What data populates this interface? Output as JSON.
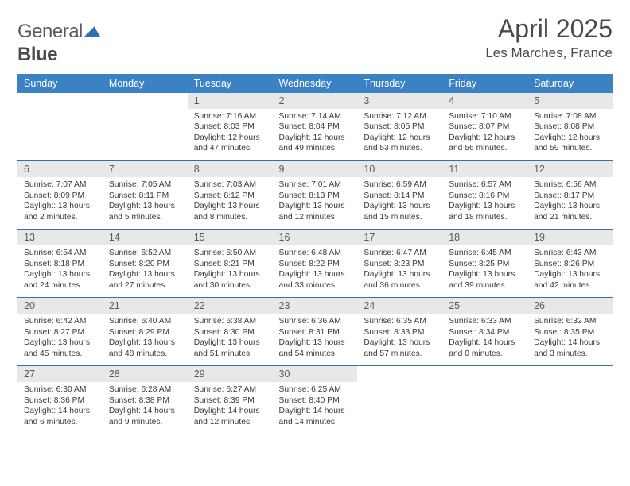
{
  "brand": {
    "part1": "General",
    "part2": "Blue"
  },
  "title": "April 2025",
  "location": "Les Marches, France",
  "colors": {
    "header_bg": "#3b82c4",
    "header_text": "#ffffff",
    "daynum_bg": "#e8e8e8",
    "text": "#4a4a4a",
    "rule": "#3b6fa0",
    "logo_mark": "#2d6fb5"
  },
  "day_headers": [
    "Sunday",
    "Monday",
    "Tuesday",
    "Wednesday",
    "Thursday",
    "Friday",
    "Saturday"
  ],
  "weeks": [
    [
      null,
      null,
      {
        "n": "1",
        "sr": "7:16 AM",
        "ss": "8:03 PM",
        "dl": "12 hours and 47 minutes."
      },
      {
        "n": "2",
        "sr": "7:14 AM",
        "ss": "8:04 PM",
        "dl": "12 hours and 49 minutes."
      },
      {
        "n": "3",
        "sr": "7:12 AM",
        "ss": "8:05 PM",
        "dl": "12 hours and 53 minutes."
      },
      {
        "n": "4",
        "sr": "7:10 AM",
        "ss": "8:07 PM",
        "dl": "12 hours and 56 minutes."
      },
      {
        "n": "5",
        "sr": "7:08 AM",
        "ss": "8:08 PM",
        "dl": "12 hours and 59 minutes."
      }
    ],
    [
      {
        "n": "6",
        "sr": "7:07 AM",
        "ss": "8:09 PM",
        "dl": "13 hours and 2 minutes."
      },
      {
        "n": "7",
        "sr": "7:05 AM",
        "ss": "8:11 PM",
        "dl": "13 hours and 5 minutes."
      },
      {
        "n": "8",
        "sr": "7:03 AM",
        "ss": "8:12 PM",
        "dl": "13 hours and 8 minutes."
      },
      {
        "n": "9",
        "sr": "7:01 AM",
        "ss": "8:13 PM",
        "dl": "13 hours and 12 minutes."
      },
      {
        "n": "10",
        "sr": "6:59 AM",
        "ss": "8:14 PM",
        "dl": "13 hours and 15 minutes."
      },
      {
        "n": "11",
        "sr": "6:57 AM",
        "ss": "8:16 PM",
        "dl": "13 hours and 18 minutes."
      },
      {
        "n": "12",
        "sr": "6:56 AM",
        "ss": "8:17 PM",
        "dl": "13 hours and 21 minutes."
      }
    ],
    [
      {
        "n": "13",
        "sr": "6:54 AM",
        "ss": "8:18 PM",
        "dl": "13 hours and 24 minutes."
      },
      {
        "n": "14",
        "sr": "6:52 AM",
        "ss": "8:20 PM",
        "dl": "13 hours and 27 minutes."
      },
      {
        "n": "15",
        "sr": "6:50 AM",
        "ss": "8:21 PM",
        "dl": "13 hours and 30 minutes."
      },
      {
        "n": "16",
        "sr": "6:48 AM",
        "ss": "8:22 PM",
        "dl": "13 hours and 33 minutes."
      },
      {
        "n": "17",
        "sr": "6:47 AM",
        "ss": "8:23 PM",
        "dl": "13 hours and 36 minutes."
      },
      {
        "n": "18",
        "sr": "6:45 AM",
        "ss": "8:25 PM",
        "dl": "13 hours and 39 minutes."
      },
      {
        "n": "19",
        "sr": "6:43 AM",
        "ss": "8:26 PM",
        "dl": "13 hours and 42 minutes."
      }
    ],
    [
      {
        "n": "20",
        "sr": "6:42 AM",
        "ss": "8:27 PM",
        "dl": "13 hours and 45 minutes."
      },
      {
        "n": "21",
        "sr": "6:40 AM",
        "ss": "8:29 PM",
        "dl": "13 hours and 48 minutes."
      },
      {
        "n": "22",
        "sr": "6:38 AM",
        "ss": "8:30 PM",
        "dl": "13 hours and 51 minutes."
      },
      {
        "n": "23",
        "sr": "6:36 AM",
        "ss": "8:31 PM",
        "dl": "13 hours and 54 minutes."
      },
      {
        "n": "24",
        "sr": "6:35 AM",
        "ss": "8:33 PM",
        "dl": "13 hours and 57 minutes."
      },
      {
        "n": "25",
        "sr": "6:33 AM",
        "ss": "8:34 PM",
        "dl": "14 hours and 0 minutes."
      },
      {
        "n": "26",
        "sr": "6:32 AM",
        "ss": "8:35 PM",
        "dl": "14 hours and 3 minutes."
      }
    ],
    [
      {
        "n": "27",
        "sr": "6:30 AM",
        "ss": "8:36 PM",
        "dl": "14 hours and 6 minutes."
      },
      {
        "n": "28",
        "sr": "6:28 AM",
        "ss": "8:38 PM",
        "dl": "14 hours and 9 minutes."
      },
      {
        "n": "29",
        "sr": "6:27 AM",
        "ss": "8:39 PM",
        "dl": "14 hours and 12 minutes."
      },
      {
        "n": "30",
        "sr": "6:25 AM",
        "ss": "8:40 PM",
        "dl": "14 hours and 14 minutes."
      },
      null,
      null,
      null
    ]
  ],
  "labels": {
    "sunrise": "Sunrise:",
    "sunset": "Sunset:",
    "daylight": "Daylight:"
  }
}
